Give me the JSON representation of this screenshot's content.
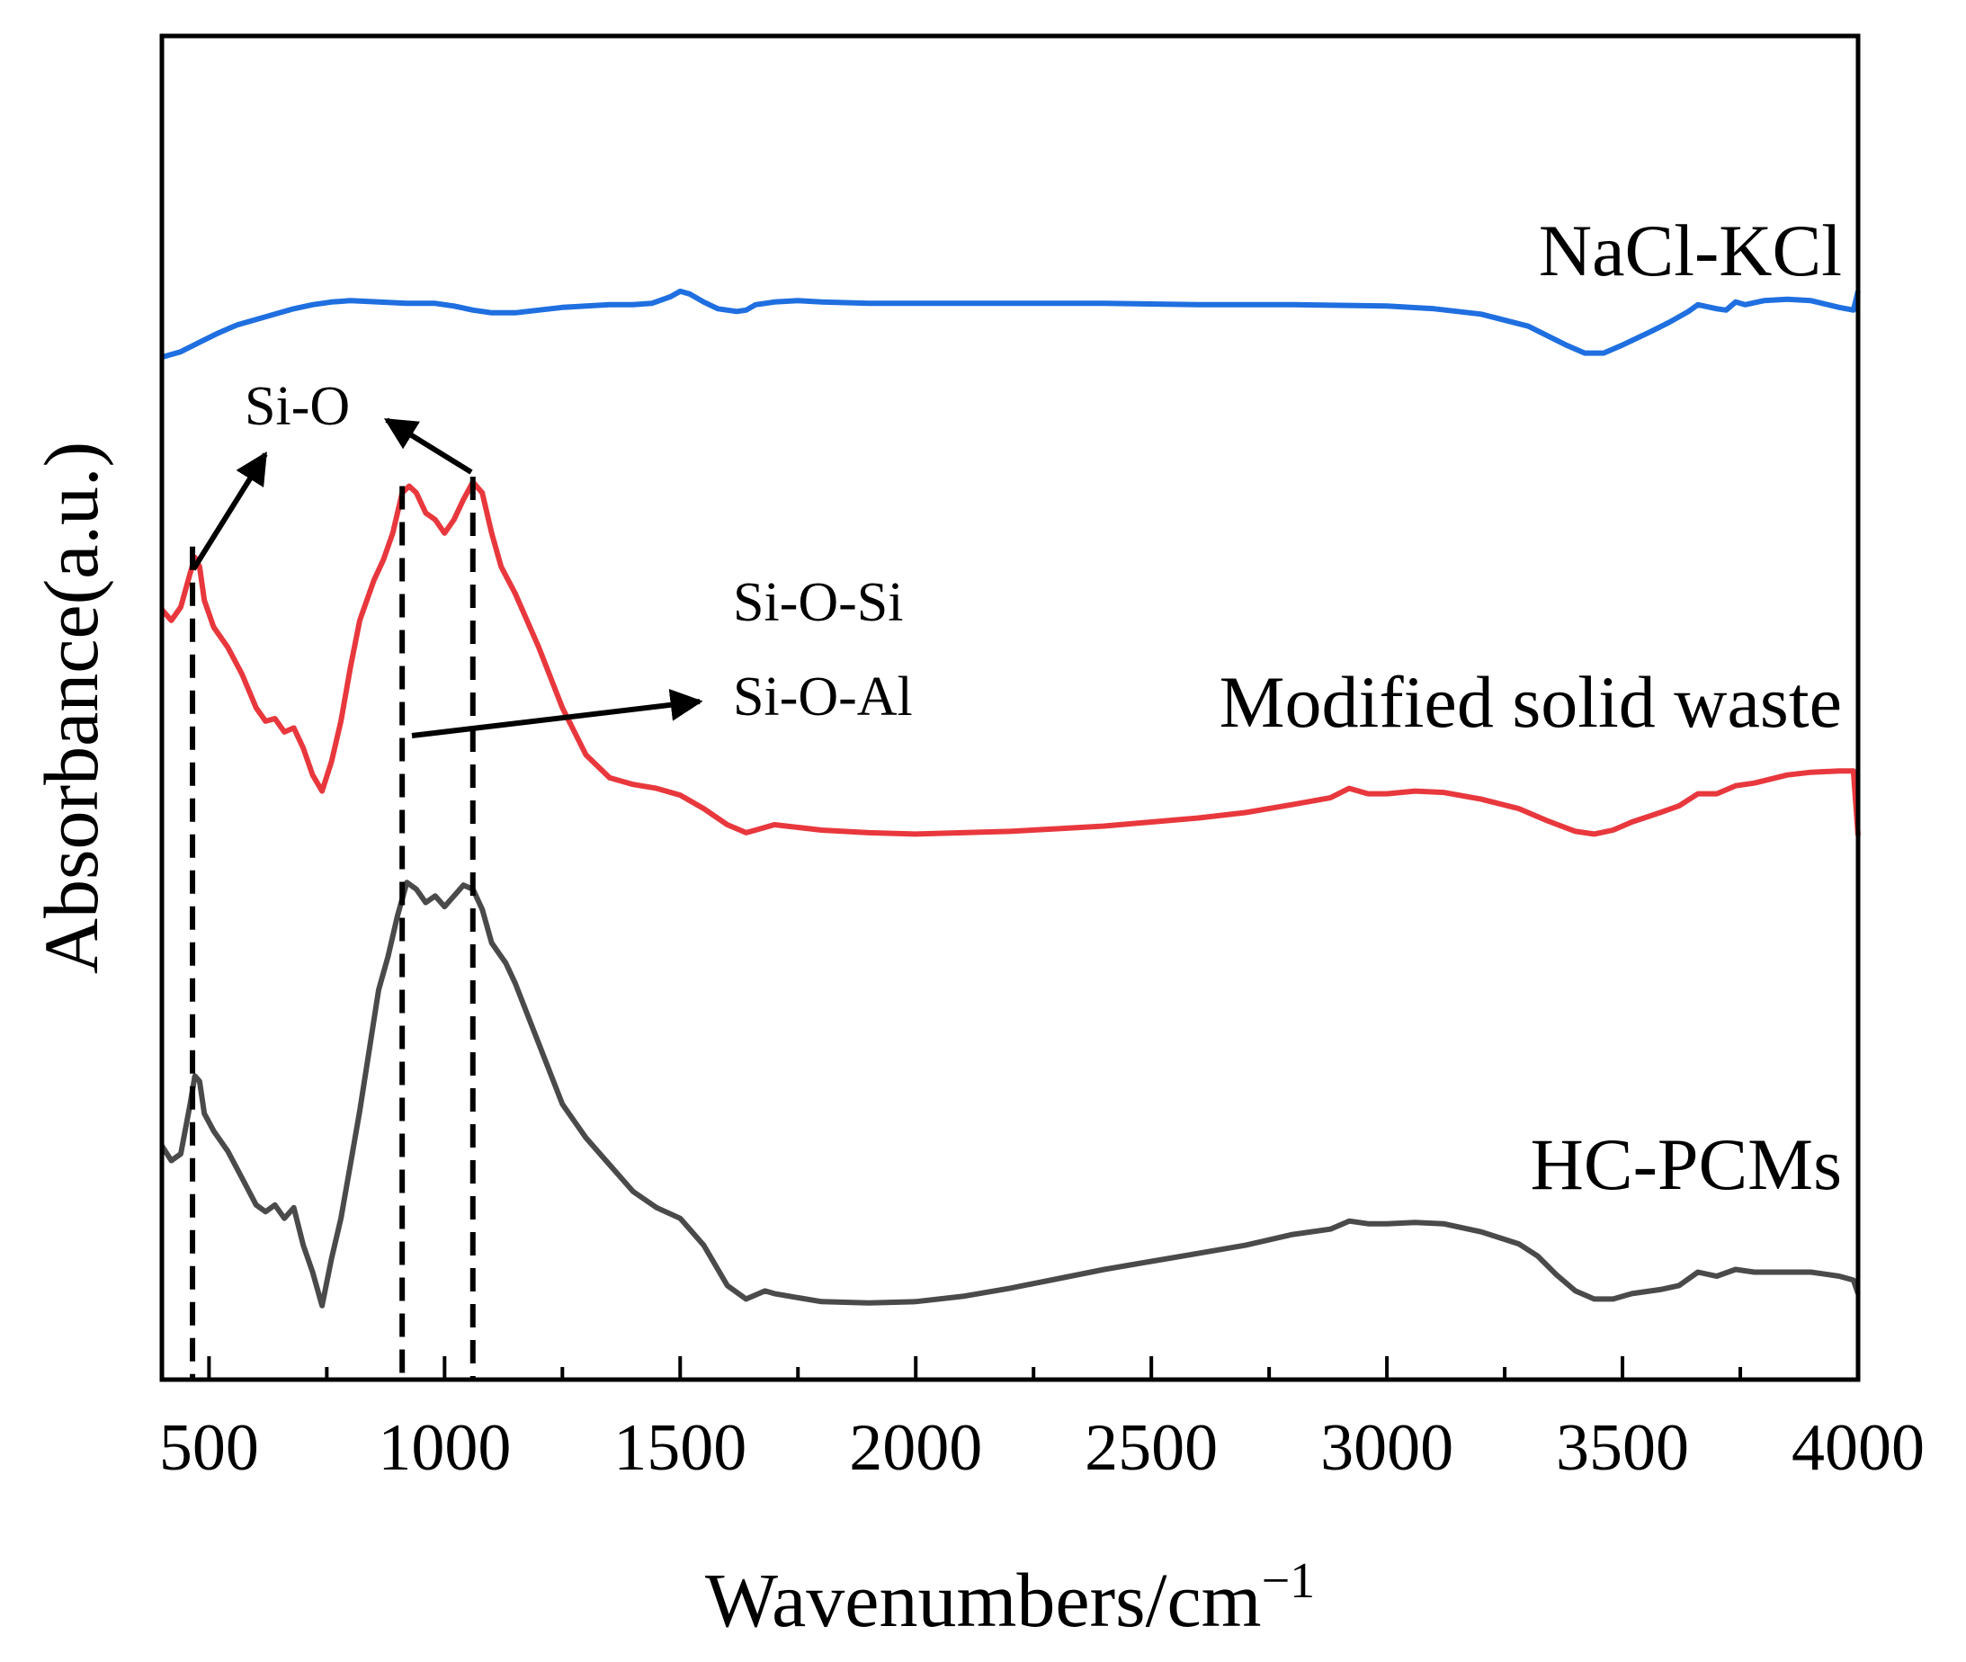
{
  "chart_data": {
    "type": "line",
    "title": "",
    "xlabel": "Wavenumbers/cm",
    "xlabel_superscript": "−1",
    "ylabel": "Absorbance(a.u.)",
    "xlim": [
      400,
      4000
    ],
    "ylim": [
      0,
      1
    ],
    "y_ticks_shown": false,
    "grid": false,
    "x_ticks": [
      "500",
      "1000",
      "1500",
      "2000",
      "2500",
      "3000",
      "3500",
      "4000"
    ],
    "series": [
      {
        "name": "NaCl-KCl",
        "color": "#1f6fe0",
        "points": [
          [
            400,
            0.761
          ],
          [
            420,
            0.763
          ],
          [
            440,
            0.765
          ],
          [
            480,
            0.772
          ],
          [
            520,
            0.779
          ],
          [
            560,
            0.785
          ],
          [
            600,
            0.789
          ],
          [
            640,
            0.793
          ],
          [
            680,
            0.797
          ],
          [
            720,
            0.8
          ],
          [
            760,
            0.802
          ],
          [
            800,
            0.803
          ],
          [
            860,
            0.802
          ],
          [
            920,
            0.801
          ],
          [
            980,
            0.801
          ],
          [
            1020,
            0.799
          ],
          [
            1060,
            0.796
          ],
          [
            1100,
            0.794
          ],
          [
            1150,
            0.794
          ],
          [
            1200,
            0.796
          ],
          [
            1250,
            0.798
          ],
          [
            1300,
            0.799
          ],
          [
            1350,
            0.8
          ],
          [
            1400,
            0.8
          ],
          [
            1440,
            0.801
          ],
          [
            1480,
            0.806
          ],
          [
            1500,
            0.81
          ],
          [
            1520,
            0.808
          ],
          [
            1550,
            0.802
          ],
          [
            1580,
            0.797
          ],
          [
            1620,
            0.795
          ],
          [
            1640,
            0.796
          ],
          [
            1660,
            0.8
          ],
          [
            1700,
            0.802
          ],
          [
            1750,
            0.803
          ],
          [
            1800,
            0.802
          ],
          [
            1900,
            0.801
          ],
          [
            2000,
            0.801
          ],
          [
            2200,
            0.801
          ],
          [
            2400,
            0.801
          ],
          [
            2600,
            0.8
          ],
          [
            2800,
            0.8
          ],
          [
            3000,
            0.799
          ],
          [
            3100,
            0.797
          ],
          [
            3200,
            0.793
          ],
          [
            3300,
            0.784
          ],
          [
            3380,
            0.77
          ],
          [
            3420,
            0.764
          ],
          [
            3460,
            0.764
          ],
          [
            3500,
            0.77
          ],
          [
            3560,
            0.78
          ],
          [
            3600,
            0.787
          ],
          [
            3640,
            0.795
          ],
          [
            3660,
            0.8
          ],
          [
            3700,
            0.797
          ],
          [
            3720,
            0.796
          ],
          [
            3740,
            0.802
          ],
          [
            3760,
            0.8
          ],
          [
            3800,
            0.803
          ],
          [
            3850,
            0.804
          ],
          [
            3900,
            0.803
          ],
          [
            3960,
            0.798
          ],
          [
            3990,
            0.796
          ],
          [
            4000,
            0.81
          ]
        ]
      },
      {
        "name": "Modified solid waste",
        "color": "#e8383d",
        "points": [
          [
            400,
            0.573
          ],
          [
            420,
            0.565
          ],
          [
            440,
            0.575
          ],
          [
            460,
            0.6
          ],
          [
            470,
            0.612
          ],
          [
            480,
            0.605
          ],
          [
            490,
            0.58
          ],
          [
            510,
            0.56
          ],
          [
            540,
            0.545
          ],
          [
            570,
            0.525
          ],
          [
            600,
            0.5
          ],
          [
            620,
            0.49
          ],
          [
            640,
            0.492
          ],
          [
            660,
            0.482
          ],
          [
            680,
            0.485
          ],
          [
            700,
            0.47
          ],
          [
            720,
            0.45
          ],
          [
            740,
            0.438
          ],
          [
            760,
            0.46
          ],
          [
            780,
            0.49
          ],
          [
            800,
            0.53
          ],
          [
            820,
            0.565
          ],
          [
            850,
            0.595
          ],
          [
            870,
            0.61
          ],
          [
            890,
            0.63
          ],
          [
            910,
            0.66
          ],
          [
            925,
            0.665
          ],
          [
            940,
            0.66
          ],
          [
            960,
            0.645
          ],
          [
            980,
            0.64
          ],
          [
            1000,
            0.63
          ],
          [
            1020,
            0.64
          ],
          [
            1040,
            0.655
          ],
          [
            1060,
            0.668
          ],
          [
            1080,
            0.66
          ],
          [
            1100,
            0.63
          ],
          [
            1120,
            0.605
          ],
          [
            1150,
            0.585
          ],
          [
            1200,
            0.545
          ],
          [
            1250,
            0.5
          ],
          [
            1300,
            0.465
          ],
          [
            1350,
            0.448
          ],
          [
            1400,
            0.443
          ],
          [
            1450,
            0.44
          ],
          [
            1500,
            0.435
          ],
          [
            1550,
            0.425
          ],
          [
            1600,
            0.413
          ],
          [
            1640,
            0.407
          ],
          [
            1660,
            0.409
          ],
          [
            1700,
            0.413
          ],
          [
            1750,
            0.411
          ],
          [
            1800,
            0.409
          ],
          [
            1900,
            0.407
          ],
          [
            2000,
            0.406
          ],
          [
            2100,
            0.407
          ],
          [
            2200,
            0.408
          ],
          [
            2300,
            0.41
          ],
          [
            2400,
            0.412
          ],
          [
            2500,
            0.415
          ],
          [
            2600,
            0.418
          ],
          [
            2700,
            0.422
          ],
          [
            2800,
            0.428
          ],
          [
            2880,
            0.433
          ],
          [
            2920,
            0.44
          ],
          [
            2960,
            0.436
          ],
          [
            3000,
            0.436
          ],
          [
            3060,
            0.438
          ],
          [
            3120,
            0.437
          ],
          [
            3200,
            0.432
          ],
          [
            3280,
            0.425
          ],
          [
            3340,
            0.416
          ],
          [
            3400,
            0.408
          ],
          [
            3440,
            0.406
          ],
          [
            3480,
            0.409
          ],
          [
            3520,
            0.415
          ],
          [
            3580,
            0.422
          ],
          [
            3620,
            0.427
          ],
          [
            3660,
            0.436
          ],
          [
            3700,
            0.436
          ],
          [
            3740,
            0.442
          ],
          [
            3780,
            0.444
          ],
          [
            3850,
            0.45
          ],
          [
            3900,
            0.452
          ],
          [
            3960,
            0.453
          ],
          [
            3990,
            0.453
          ],
          [
            4000,
            0.405
          ]
        ]
      },
      {
        "name": "HC-PCMs",
        "color": "#4a4a4a",
        "points": [
          [
            400,
            0.174
          ],
          [
            420,
            0.163
          ],
          [
            440,
            0.168
          ],
          [
            460,
            0.205
          ],
          [
            470,
            0.226
          ],
          [
            480,
            0.222
          ],
          [
            490,
            0.198
          ],
          [
            510,
            0.185
          ],
          [
            540,
            0.17
          ],
          [
            570,
            0.15
          ],
          [
            600,
            0.13
          ],
          [
            620,
            0.125
          ],
          [
            640,
            0.13
          ],
          [
            660,
            0.12
          ],
          [
            680,
            0.128
          ],
          [
            700,
            0.1
          ],
          [
            720,
            0.08
          ],
          [
            740,
            0.055
          ],
          [
            760,
            0.09
          ],
          [
            780,
            0.12
          ],
          [
            800,
            0.16
          ],
          [
            820,
            0.2
          ],
          [
            840,
            0.245
          ],
          [
            860,
            0.29
          ],
          [
            880,
            0.315
          ],
          [
            900,
            0.345
          ],
          [
            920,
            0.37
          ],
          [
            940,
            0.365
          ],
          [
            960,
            0.355
          ],
          [
            980,
            0.36
          ],
          [
            1000,
            0.352
          ],
          [
            1020,
            0.36
          ],
          [
            1040,
            0.368
          ],
          [
            1060,
            0.365
          ],
          [
            1080,
            0.35
          ],
          [
            1100,
            0.325
          ],
          [
            1130,
            0.31
          ],
          [
            1150,
            0.295
          ],
          [
            1200,
            0.25
          ],
          [
            1250,
            0.205
          ],
          [
            1300,
            0.18
          ],
          [
            1350,
            0.16
          ],
          [
            1400,
            0.14
          ],
          [
            1450,
            0.128
          ],
          [
            1500,
            0.12
          ],
          [
            1550,
            0.1
          ],
          [
            1600,
            0.07
          ],
          [
            1640,
            0.06
          ],
          [
            1680,
            0.066
          ],
          [
            1700,
            0.064
          ],
          [
            1750,
            0.061
          ],
          [
            1800,
            0.058
          ],
          [
            1900,
            0.057
          ],
          [
            2000,
            0.058
          ],
          [
            2100,
            0.062
          ],
          [
            2200,
            0.068
          ],
          [
            2300,
            0.075
          ],
          [
            2400,
            0.082
          ],
          [
            2500,
            0.088
          ],
          [
            2600,
            0.094
          ],
          [
            2700,
            0.1
          ],
          [
            2800,
            0.108
          ],
          [
            2880,
            0.112
          ],
          [
            2920,
            0.118
          ],
          [
            2960,
            0.116
          ],
          [
            3000,
            0.116
          ],
          [
            3060,
            0.117
          ],
          [
            3120,
            0.116
          ],
          [
            3200,
            0.11
          ],
          [
            3280,
            0.101
          ],
          [
            3320,
            0.092
          ],
          [
            3360,
            0.078
          ],
          [
            3400,
            0.066
          ],
          [
            3440,
            0.06
          ],
          [
            3480,
            0.06
          ],
          [
            3520,
            0.064
          ],
          [
            3580,
            0.067
          ],
          [
            3620,
            0.07
          ],
          [
            3660,
            0.08
          ],
          [
            3700,
            0.077
          ],
          [
            3740,
            0.082
          ],
          [
            3780,
            0.08
          ],
          [
            3850,
            0.08
          ],
          [
            3900,
            0.08
          ],
          [
            3960,
            0.077
          ],
          [
            3990,
            0.074
          ],
          [
            4000,
            0.064
          ]
        ]
      }
    ],
    "dashed_lines_x": [
      465,
      910,
      1060
    ],
    "annotations": [
      {
        "text": "Si-O",
        "type": "label"
      },
      {
        "text": "Si-O-Si",
        "type": "label"
      },
      {
        "text": "Si-O-Al",
        "type": "label"
      }
    ],
    "series_labels": [
      "NaCl-KCl",
      "Modified solid waste",
      "HC-PCMs"
    ]
  }
}
